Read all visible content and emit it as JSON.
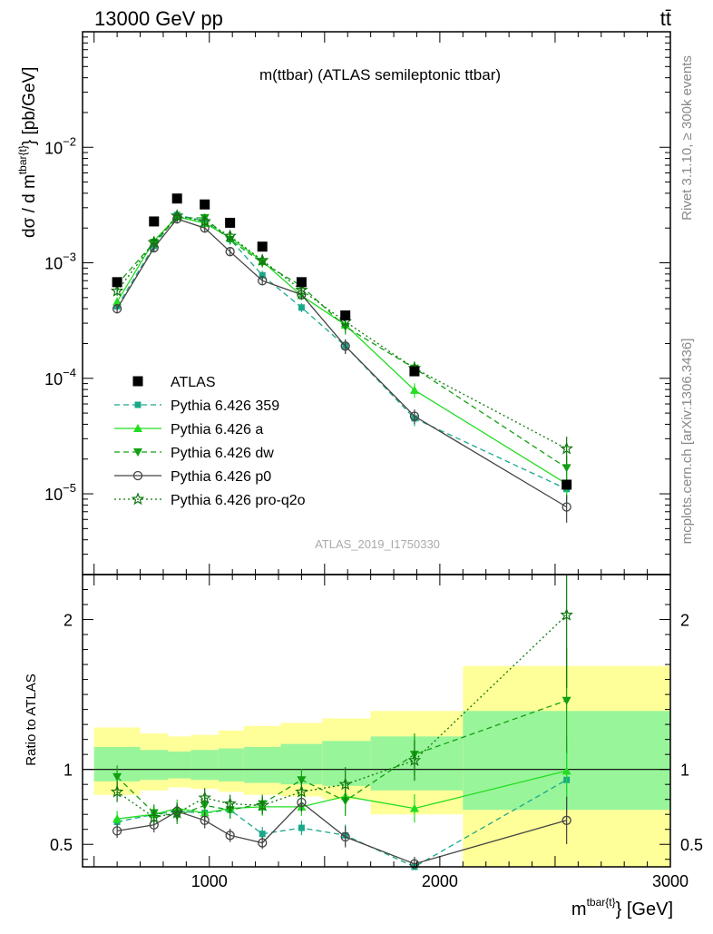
{
  "header": {
    "left": "13000 GeV pp",
    "right": "tt̄"
  },
  "plot_title": "m(ttbar) (ATLAS semileptonic ttbar)",
  "side_labels": {
    "rivet": "Rivet 3.1.10, ≥ 300k events",
    "mcplots": "mcplots.cern.ch [arXiv:1306.3436]"
  },
  "watermark": "ATLAS_2019_I1750330",
  "colors": {
    "atlas": "#000000",
    "p359": "#1aa88a",
    "pa": "#22dd22",
    "pdw": "#11a011",
    "pp0": "#444444",
    "pq2o": "#117711",
    "band_yellow": "#ffff99",
    "band_green": "#99f599"
  },
  "chart_data": [
    {
      "type": "line",
      "title": "m(ttbar) (ATLAS semileptonic ttbar)",
      "ylabel": "dσ / d m^{tbar{t}} [pb/GeV]",
      "ylabel_main": "dσ / d m",
      "ylabel_sup": "tbar{t}",
      "ylabel_unit": "} [pb/GeV]",
      "yscale": "log",
      "xlim": [
        450,
        3000
      ],
      "ylim": [
        2e-06,
        0.1
      ],
      "ytick_labels": [
        {
          "value": 0.01,
          "base": "10",
          "exp": "−2"
        },
        {
          "value": 0.001,
          "base": "10",
          "exp": "−3"
        },
        {
          "value": 0.0001,
          "base": "10",
          "exp": "−4"
        },
        {
          "value": 1e-05,
          "base": "10",
          "exp": "−5"
        }
      ],
      "x": [
        600,
        760,
        860,
        980,
        1090,
        1230,
        1400,
        1590,
        1890,
        2550
      ],
      "series": [
        {
          "name": "ATLAS",
          "key": "atlas",
          "style": "data",
          "values": [
            0.00068,
            0.00228,
            0.0036,
            0.0032,
            0.00222,
            0.00138,
            0.00068,
            0.00035,
            0.000115,
            1.2e-05
          ]
        },
        {
          "name": "Pythia 6.426 359",
          "key": "p359",
          "style": "dashed",
          "marker": "square",
          "values": [
            0.00042,
            0.0014,
            0.0026,
            0.0023,
            0.0016,
            0.00078,
            0.00041,
            0.00019,
            4.5e-05,
            1.1e-05
          ]
        },
        {
          "name": "Pythia 6.426 a",
          "key": "pa",
          "style": "solid",
          "marker": "triangle-up",
          "values": [
            0.00046,
            0.00155,
            0.0025,
            0.0022,
            0.00165,
            0.00103,
            0.00052,
            0.00029,
            7.9e-05,
            1.22e-05
          ]
        },
        {
          "name": "Pythia 6.426 dw",
          "key": "pdw",
          "style": "dashed",
          "marker": "triangle-down",
          "values": [
            0.00065,
            0.0015,
            0.00245,
            0.00245,
            0.00158,
            0.001,
            0.00063,
            0.00028,
            0.000122,
            1.68e-05
          ]
        },
        {
          "name": "Pythia 6.426 p0",
          "key": "pp0",
          "style": "solid",
          "marker": "circle-open",
          "values": [
            0.0004,
            0.00135,
            0.0024,
            0.002,
            0.00125,
            0.0007,
            0.00053,
            0.00019,
            4.7e-05,
            7.7e-06
          ]
        },
        {
          "name": "Pythia 6.426 pro-q2o",
          "key": "pq2o",
          "style": "dotted",
          "marker": "star-open",
          "values": [
            0.00057,
            0.0015,
            0.00255,
            0.00228,
            0.0017,
            0.00105,
            0.00058,
            0.00031,
            0.000122,
            2.46e-05
          ]
        }
      ]
    },
    {
      "type": "line",
      "ylabel": "Ratio to ATLAS",
      "xlabel": "m^{tbar{t}} [GeV]",
      "xlabel_main": "m",
      "xlabel_sup": "tbar{t}",
      "xlabel_unit": "} [GeV]",
      "xlim": [
        450,
        3000
      ],
      "ylim": [
        0.35,
        2.3
      ],
      "xtick_labels": [
        "1000",
        "2000",
        "3000"
      ],
      "xticks": [
        1000,
        2000,
        3000
      ],
      "ytick_labels": [
        "0.5",
        "1",
        "2"
      ],
      "yticks": [
        0.5,
        1,
        2
      ],
      "bands": {
        "edges": [
          500,
          700,
          820,
          920,
          1040,
          1150,
          1310,
          1490,
          1700,
          2100,
          3000
        ],
        "yellow_low": [
          0.83,
          0.86,
          0.88,
          0.87,
          0.85,
          0.83,
          0.82,
          0.8,
          0.7,
          0.35
        ],
        "yellow_high": [
          1.28,
          1.24,
          1.22,
          1.23,
          1.26,
          1.29,
          1.31,
          1.34,
          1.39,
          1.69
        ],
        "green_low": [
          0.92,
          0.93,
          0.94,
          0.93,
          0.92,
          0.91,
          0.9,
          0.89,
          0.86,
          0.73
        ],
        "green_high": [
          1.15,
          1.13,
          1.12,
          1.13,
          1.14,
          1.15,
          1.17,
          1.19,
          1.22,
          1.39
        ]
      },
      "x": [
        600,
        760,
        860,
        980,
        1090,
        1230,
        1400,
        1590,
        1890,
        2550
      ],
      "series": [
        {
          "name": "Pythia 6.426 359",
          "key": "p359",
          "style": "dashed",
          "marker": "square",
          "values": [
            0.65,
            0.7,
            0.72,
            0.71,
            0.73,
            0.57,
            0.61,
            0.56,
            0.35,
            0.93
          ]
        },
        {
          "name": "Pythia 6.426 a",
          "key": "pa",
          "style": "solid",
          "marker": "triangle-up",
          "values": [
            0.67,
            0.7,
            0.74,
            0.71,
            0.74,
            0.75,
            0.75,
            0.82,
            0.74,
            0.99
          ]
        },
        {
          "name": "Pythia 6.426 dw",
          "key": "pdw",
          "style": "dashed",
          "marker": "triangle-down",
          "values": [
            0.95,
            0.71,
            0.69,
            0.76,
            0.73,
            0.77,
            0.93,
            0.79,
            1.1,
            1.46
          ]
        },
        {
          "name": "Pythia 6.426 p0",
          "key": "pp0",
          "style": "solid",
          "marker": "circle-open",
          "values": [
            0.59,
            0.63,
            0.72,
            0.66,
            0.56,
            0.51,
            0.78,
            0.55,
            0.37,
            0.66
          ]
        },
        {
          "name": "Pythia 6.426 pro-q2o",
          "key": "pq2o",
          "style": "dotted",
          "marker": "star-open",
          "values": [
            0.85,
            0.68,
            0.71,
            0.81,
            0.77,
            0.76,
            0.85,
            0.9,
            1.06,
            2.03
          ]
        }
      ]
    }
  ]
}
